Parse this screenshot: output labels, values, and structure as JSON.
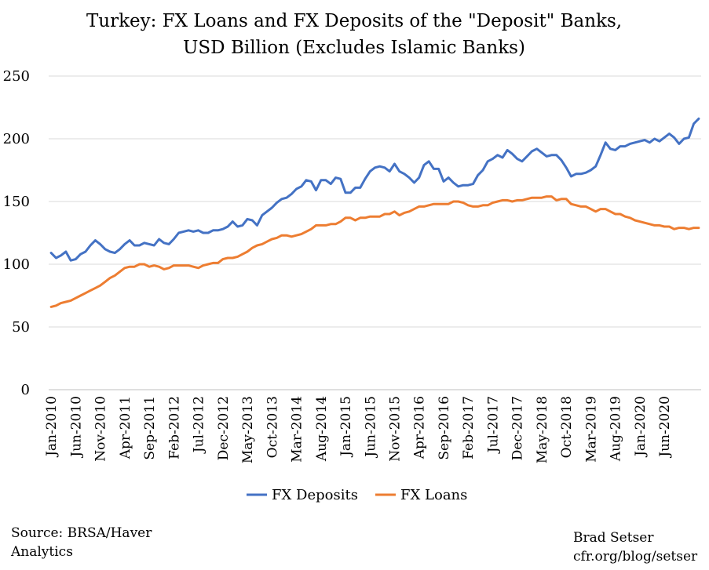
{
  "chart_data": {
    "type": "line",
    "title": [
      "Turkey: FX Loans and FX Deposits of the \"Deposit\" Banks,",
      "USD Billion (Excludes Islamic Banks)"
    ],
    "ylim": [
      0,
      250
    ],
    "yticks": [
      "0",
      "50",
      "100",
      "150",
      "200",
      "250"
    ],
    "grid": "horizontal",
    "legend": "bottom",
    "x_tick_labels": [
      "Jan-2010",
      "Jun-2010",
      "Nov-2010",
      "Apr-2011",
      "Sep-2011",
      "Feb-2012",
      "Jul-2012",
      "Dec-2012",
      "May-2013",
      "Oct-2013",
      "Mar-2014",
      "Aug-2014",
      "Jan-2015",
      "Jun-2015",
      "Nov-2015",
      "Apr-2016",
      "Sep-2016",
      "Feb-2017",
      "Jul-2017",
      "Dec-2017",
      "May-2018",
      "Oct-2018",
      "Mar-2019",
      "Aug-2019",
      "Jan-2020",
      "Jun-2020"
    ],
    "x_start": "Jan-2010",
    "x_frequency": "monthly",
    "series": [
      {
        "name": "FX Deposits",
        "color": "#4472C4",
        "values": [
          109,
          105,
          107,
          110,
          103,
          104,
          108,
          110,
          115,
          119,
          116,
          112,
          110,
          109,
          112,
          116,
          119,
          115,
          115,
          117,
          116,
          115,
          120,
          117,
          116,
          120,
          125,
          126,
          127,
          126,
          127,
          125,
          125,
          127,
          127,
          128,
          130,
          134,
          130,
          131,
          136,
          135,
          131,
          139,
          142,
          145,
          149,
          152,
          153,
          156,
          160,
          162,
          167,
          166,
          159,
          167,
          167,
          164,
          169,
          168,
          157,
          157,
          161,
          161,
          168,
          174,
          177,
          178,
          177,
          174,
          180,
          174,
          172,
          169,
          165,
          169,
          179,
          182,
          176,
          176,
          166,
          169,
          165,
          162,
          163,
          163,
          164,
          171,
          175,
          182,
          184,
          187,
          185,
          191,
          188,
          184,
          182,
          186,
          190,
          192,
          189,
          186,
          187,
          187,
          183,
          177,
          170,
          172,
          172,
          173,
          175,
          178,
          187,
          197,
          192,
          191,
          194,
          194,
          196,
          197,
          198,
          199,
          197,
          200,
          198,
          201,
          204,
          201,
          196,
          200,
          201,
          212,
          216
        ]
      },
      {
        "name": "FX Loans",
        "color": "#ED7D31",
        "values": [
          66,
          67,
          69,
          70,
          71,
          73,
          75,
          77,
          79,
          81,
          83,
          86,
          89,
          91,
          94,
          97,
          98,
          98,
          100,
          100,
          98,
          99,
          98,
          96,
          97,
          99,
          99,
          99,
          99,
          98,
          97,
          99,
          100,
          101,
          101,
          104,
          105,
          105,
          106,
          108,
          110,
          113,
          115,
          116,
          118,
          120,
          121,
          123,
          123,
          122,
          123,
          124,
          126,
          128,
          131,
          131,
          131,
          132,
          132,
          134,
          137,
          137,
          135,
          137,
          137,
          138,
          138,
          138,
          140,
          140,
          142,
          139,
          141,
          142,
          144,
          146,
          146,
          147,
          148,
          148,
          148,
          148,
          150,
          150,
          149,
          147,
          146,
          146,
          147,
          147,
          149,
          150,
          151,
          151,
          150,
          151,
          151,
          152,
          153,
          153,
          153,
          154,
          154,
          151,
          152,
          152,
          148,
          147,
          146,
          146,
          144,
          142,
          144,
          144,
          142,
          140,
          140,
          138,
          137,
          135,
          134,
          133,
          132,
          131,
          131,
          130,
          130,
          128,
          129,
          129,
          128,
          129,
          129
        ]
      }
    ]
  },
  "footer": {
    "source_line1": "Source: BRSA/Haver",
    "source_line2": "Analytics",
    "author": "Brad Setser",
    "site": "cfr.org/blog/setser"
  }
}
